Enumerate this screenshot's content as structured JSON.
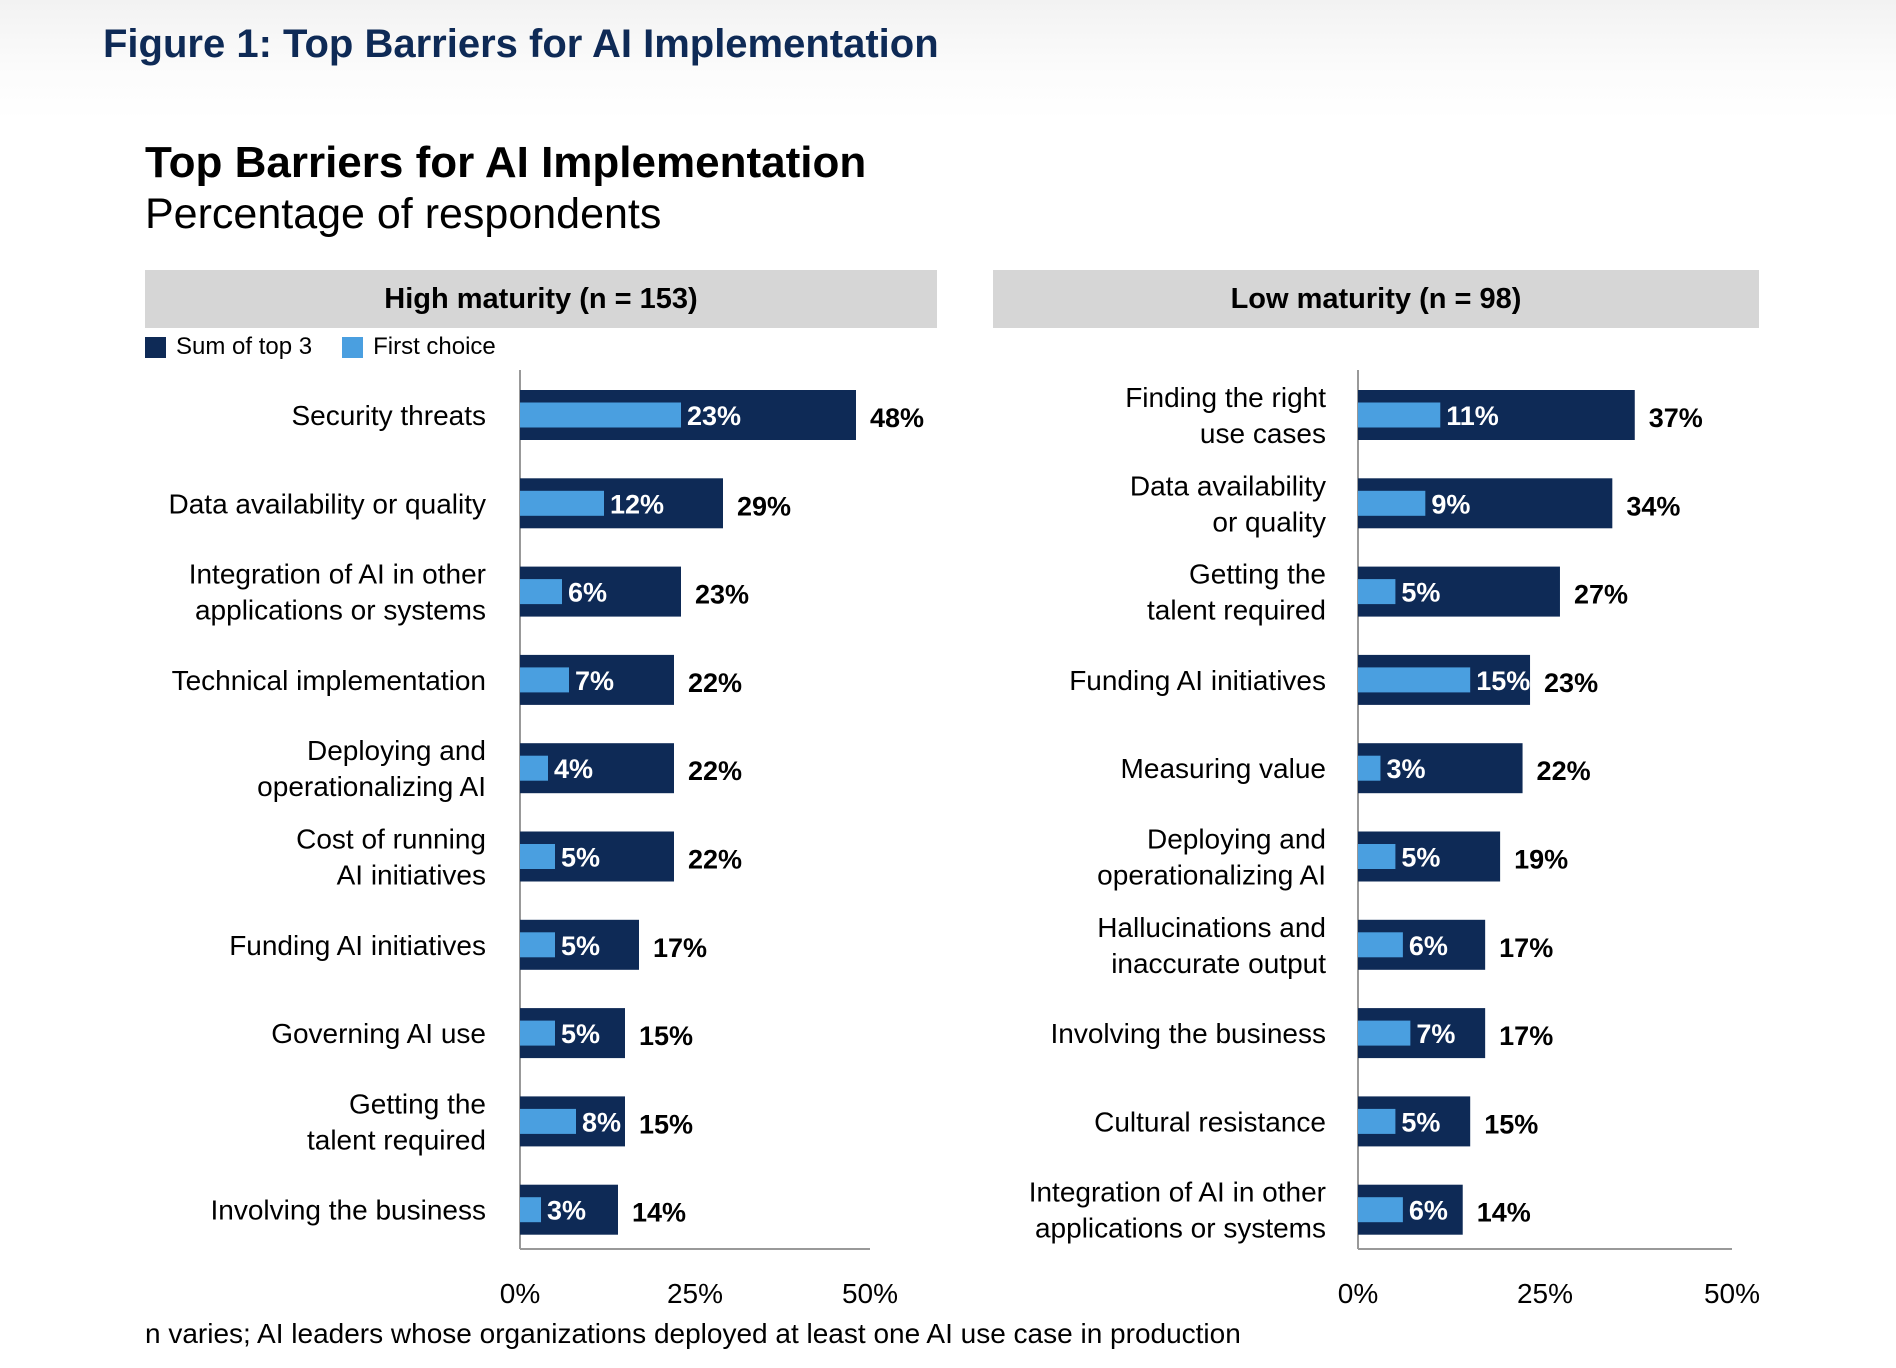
{
  "figure_title": "Figure 1: Top Barriers for AI Implementation",
  "colors": {
    "sum_of_top_3": "#0e2a56",
    "first_choice": "#4a9fe0",
    "header_bg": "#d6d6d6",
    "axis": "#999999"
  },
  "chart_data": {
    "type": "bar",
    "orientation": "horizontal",
    "title": "Top Barriers for AI Implementation",
    "subtitle": "Percentage of respondents",
    "legend": [
      {
        "name": "Sum of top 3",
        "color": "#0e2a56"
      },
      {
        "name": "First choice",
        "color": "#4a9fe0"
      }
    ],
    "xlim": [
      0,
      50
    ],
    "x_ticks": [
      "0%",
      "25%",
      "50%"
    ],
    "panels": [
      {
        "name": "High maturity (n = 153)",
        "categories": [
          [
            "Security threats"
          ],
          [
            "Data availability or quality"
          ],
          [
            "Integration of AI in other",
            "applications or systems"
          ],
          [
            "Technical implementation"
          ],
          [
            "Deploying and",
            "operationalizing AI"
          ],
          [
            "Cost of running",
            "AI initiatives"
          ],
          [
            "Funding AI initiatives"
          ],
          [
            "Governing AI use"
          ],
          [
            "Getting the",
            "talent required"
          ],
          [
            "Involving the business"
          ]
        ],
        "series": [
          {
            "name": "Sum of top 3",
            "values": [
              48,
              29,
              23,
              22,
              22,
              22,
              17,
              15,
              15,
              14
            ]
          },
          {
            "name": "First choice",
            "values": [
              23,
              12,
              6,
              7,
              4,
              5,
              5,
              5,
              8,
              3
            ]
          }
        ]
      },
      {
        "name": "Low maturity (n = 98)",
        "categories": [
          [
            "Finding the right",
            "use cases"
          ],
          [
            "Data availability",
            "or quality"
          ],
          [
            "Getting the",
            "talent required"
          ],
          [
            "Funding AI initiatives"
          ],
          [
            "Measuring value"
          ],
          [
            "Deploying and",
            "operationalizing AI"
          ],
          [
            "Hallucinations and",
            "inaccurate output"
          ],
          [
            "Involving the business"
          ],
          [
            "Cultural resistance"
          ],
          [
            "Integration of AI in other",
            "applications or systems"
          ]
        ],
        "series": [
          {
            "name": "Sum of top 3",
            "values": [
              37,
              34,
              27,
              23,
              22,
              19,
              17,
              17,
              15,
              14
            ]
          },
          {
            "name": "First choice",
            "values": [
              11,
              9,
              5,
              15,
              3,
              5,
              6,
              7,
              5,
              6
            ]
          }
        ]
      }
    ]
  },
  "footnote": "n varies; AI leaders whose organizations deployed at least one AI use case in production"
}
